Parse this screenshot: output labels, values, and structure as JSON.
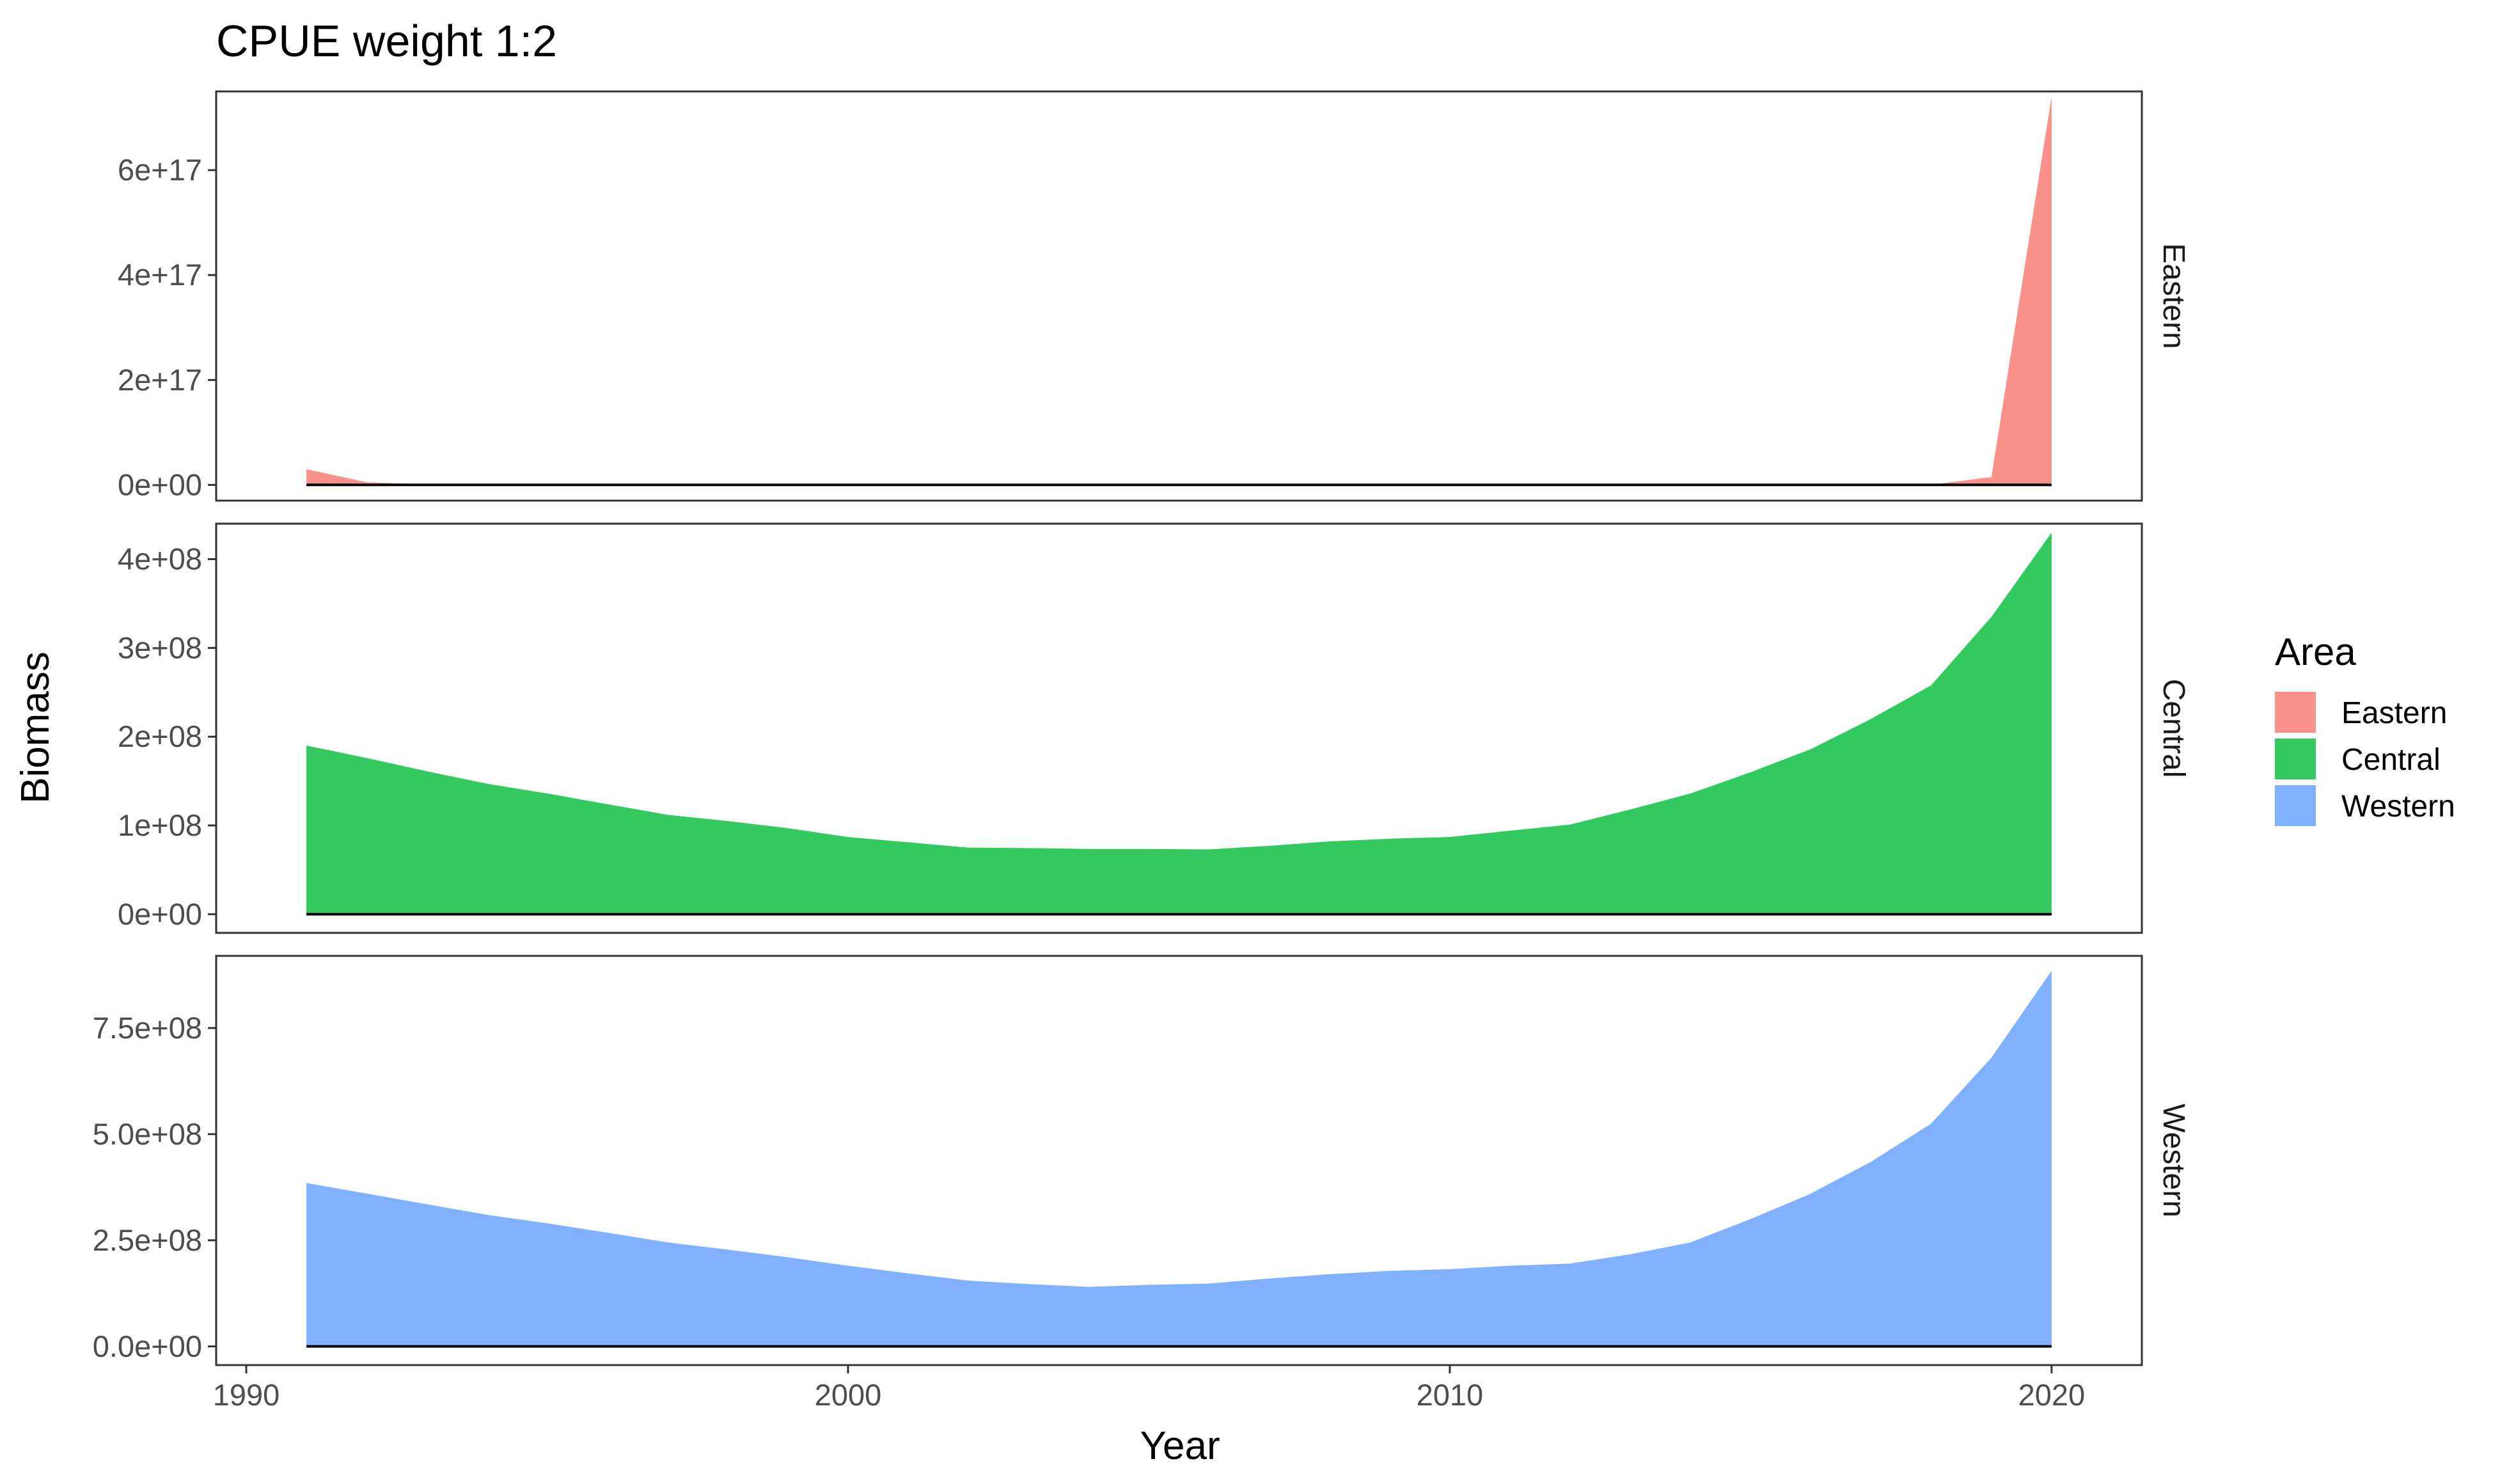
{
  "chart_data": {
    "type": "area",
    "title": "CPUE weight 1:2",
    "xlabel": "Year",
    "ylabel": "Biomass",
    "x_ticks": [
      1990,
      2000,
      2010,
      2020
    ],
    "x_tick_labels": [
      "1990",
      "2000",
      "2010",
      "2020"
    ],
    "xlim": [
      1989.5,
      2021.5
    ],
    "x": [
      1991,
      1992,
      1993,
      1994,
      1995,
      1996,
      1997,
      1998,
      1999,
      2000,
      2001,
      2002,
      2003,
      2004,
      2005,
      2006,
      2007,
      2008,
      2009,
      2010,
      2011,
      2012,
      2013,
      2014,
      2015,
      2016,
      2017,
      2018,
      2019,
      2020
    ],
    "facets": "rows, free y scales",
    "legend": {
      "title": "Area",
      "position": "right",
      "entries": [
        "Eastern",
        "Central",
        "Western"
      ]
    },
    "series": [
      {
        "name": "Eastern",
        "color": "#F8766D",
        "fill_alpha": 0.8,
        "ylim": [
          -3e+16,
          7.5e+17
        ],
        "y_ticks": [
          0,
          2e+17,
          4e+17,
          6e+17
        ],
        "y_tick_labels": [
          "0e+00",
          "2e+17",
          "4e+17",
          "6e+17"
        ],
        "values": [
          3e+16,
          5000000000000000.0,
          1000000000000000.0,
          0,
          0,
          0,
          0,
          0,
          0,
          0,
          0,
          0,
          0,
          0,
          0,
          0,
          0,
          0,
          0,
          0,
          0,
          0,
          0,
          0,
          0,
          0,
          0,
          200000000000000.0,
          1.5e+16,
          7.4e+17
        ]
      },
      {
        "name": "Central",
        "color": "#00BA38",
        "fill_alpha": 0.8,
        "ylim": [
          -21000000.0,
          440000000.0
        ],
        "y_ticks": [
          0,
          100000000.0,
          200000000.0,
          300000000.0,
          400000000.0
        ],
        "y_tick_labels": [
          "0e+00",
          "1e+08",
          "2e+08",
          "3e+08",
          "4e+08"
        ],
        "values": [
          190000000.0,
          176000000.0,
          161000000.0,
          147000000.0,
          136000000.0,
          124000000.0,
          112000000.0,
          105000000.0,
          97000000.0,
          87000000.0,
          81000000.0,
          75000000.0,
          74500000.0,
          73500000.0,
          73500000.0,
          73000000.0,
          77000000.0,
          82000000.0,
          85000000.0,
          87000000.0,
          94000000.0,
          101000000.0,
          118000000.0,
          136000000.0,
          160000000.0,
          186000000.0,
          220000000.0,
          258000000.0,
          335000000.0,
          430000000.0
        ]
      },
      {
        "name": "Western",
        "color": "#619CFF",
        "fill_alpha": 0.8,
        "ylim": [
          -44000000.0,
          920000000.0
        ],
        "y_ticks": [
          0,
          250000000.0,
          500000000.0,
          750000000.0
        ],
        "y_tick_labels": [
          "0.0e+00",
          "2.5e+08",
          "5.0e+08",
          "7.5e+08"
        ],
        "values": [
          385000000.0,
          360000000.0,
          335000000.0,
          310000000.0,
          290000000.0,
          268000000.0,
          245000000.0,
          228000000.0,
          210000000.0,
          190000000.0,
          172000000.0,
          155000000.0,
          147000000.0,
          140000000.0,
          145000000.0,
          148000000.0,
          160000000.0,
          170000000.0,
          178000000.0,
          182000000.0,
          190000000.0,
          195000000.0,
          217000000.0,
          245000000.0,
          300000000.0,
          360000000.0,
          435000000.0,
          525000000.0,
          680000000.0,
          885000000.0
        ]
      }
    ]
  }
}
